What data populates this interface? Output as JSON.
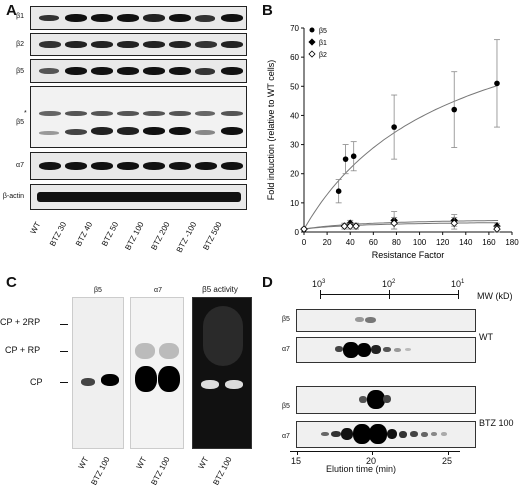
{
  "panels": {
    "a": "A",
    "b": "B",
    "c": "C",
    "d": "D"
  },
  "panel_a": {
    "rows": [
      "β1",
      "β2",
      "β5",
      "β5",
      "*",
      "α7",
      "β-actin"
    ],
    "lanes": [
      "WT",
      "BTZ 30",
      "BTZ 40",
      "BTZ 50",
      "BTZ 100",
      "BTZ 200",
      "BTZ -100",
      "BTZ 500"
    ]
  },
  "panel_c": {
    "blot1_title": "β5",
    "blot2_title": "α7",
    "blot3_title": "β5 activity",
    "side_labels": [
      "CP + 2RP",
      "CP + RP",
      "CP"
    ],
    "lanes": [
      "WT",
      "BTZ 100"
    ]
  },
  "panel_d": {
    "mw_label": "MW (kD)",
    "mw_ticks": [
      "10",
      "3",
      "10",
      "2",
      "10",
      "1"
    ],
    "row_labels": [
      "β5",
      "α7",
      "β5",
      "α7"
    ],
    "group_labels": [
      "WT",
      "BTZ 100"
    ],
    "x_ticks": [
      "15",
      "20",
      "25"
    ],
    "xlabel": "Elution time (min)"
  },
  "chart_data": {
    "type": "scatter",
    "xlabel": "Resistance Factor",
    "ylabel": "Fold induction (relative to WT cells)",
    "xlim": [
      0,
      180
    ],
    "ylim": [
      0,
      70
    ],
    "x_ticks": [
      "0",
      "20",
      "40",
      "60",
      "80",
      "100",
      "120",
      "140",
      "160",
      "180"
    ],
    "y_ticks": [
      "0",
      "10",
      "20",
      "30",
      "40",
      "50",
      "60",
      "70"
    ],
    "legend": "top-left",
    "series": [
      {
        "name": "β5",
        "marker": "circle-filled",
        "x": [
          0,
          30,
          36,
          43,
          78,
          130,
          167
        ],
        "y": [
          1,
          14,
          25,
          26,
          36,
          42,
          51
        ],
        "err": [
          0,
          4,
          5,
          5,
          11,
          13,
          15
        ]
      },
      {
        "name": "β1",
        "marker": "diamond-filled",
        "x": [
          0,
          35,
          40,
          45,
          78,
          130,
          167
        ],
        "y": [
          1,
          2,
          3,
          2,
          4,
          4,
          2
        ],
        "err": [
          0,
          1,
          1,
          1,
          3,
          2,
          1
        ]
      },
      {
        "name": "β2",
        "marker": "diamond-open",
        "x": [
          0,
          35,
          40,
          45,
          78,
          130,
          167
        ],
        "y": [
          1,
          2,
          2,
          2,
          3,
          3,
          1
        ],
        "err": [
          0,
          1,
          1,
          1,
          2,
          2,
          1
        ]
      }
    ],
    "fit_curve_series": [
      "β5",
      "β1",
      "β2"
    ]
  }
}
